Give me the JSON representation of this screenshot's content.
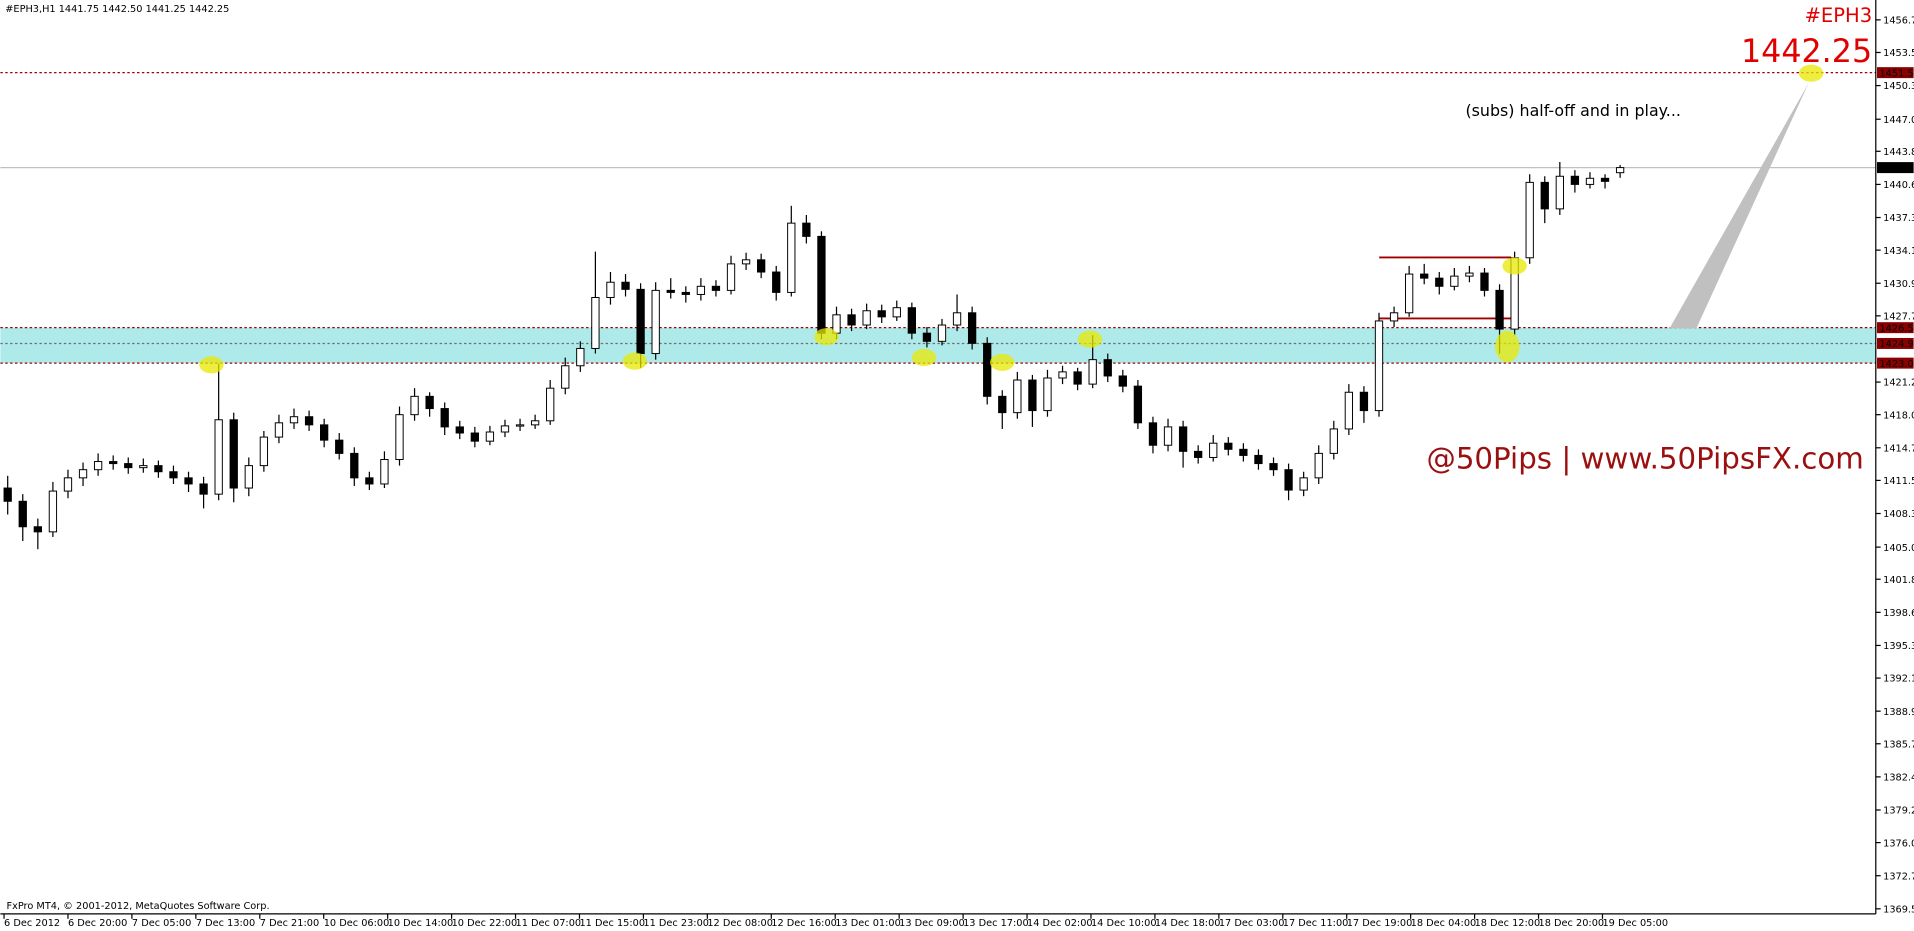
{
  "chart_data": {
    "type": "candlestick",
    "header": "#EPH3,H1  1441.75 1442.50 1441.25 1442.25",
    "symbol_label": "#EPH3",
    "price_label": "1442.25",
    "note": "(subs) half-off and in play...",
    "brand": "@50Pips | www.50PipsFX.com",
    "footer": "FxPro MT4, © 2001-2012, MetaQuotes Software Corp.",
    "bull_color": "#ffffff",
    "bear_color": "#000000",
    "ylim": [
      1369.0,
      1458.7
    ],
    "yticks": [
      1456.75,
      1453.55,
      {
        "value": 1450.3,
        "label": "1450.30"
      },
      {
        "value": 1447,
        "label": "1447.00"
      },
      1443.85,
      {
        "value": 1440.6,
        "label": "1440.60"
      },
      1437.35,
      1434.15,
      {
        "value": 1430.9,
        "label": "1430.90"
      },
      {
        "value": 1427.7,
        "label": "1427.70"
      },
      {
        "value": 1421.2,
        "label": "1421.20"
      },
      {
        "value": 1418,
        "label": "1418.00"
      },
      1414.75,
      1411.55,
      {
        "value": 1408.3,
        "label": "1408.30"
      },
      {
        "value": 1405,
        "label": "1405.00"
      },
      1401.85,
      {
        "value": 1398.6,
        "label": "1398.60"
      },
      1395.35,
      1392.15,
      {
        "value": 1388.9,
        "label": "1388.90"
      },
      {
        "value": 1385.7,
        "label": "1385.70"
      },
      1382.45,
      {
        "value": 1379.2,
        "label": "1379.20"
      },
      {
        "value": 1376,
        "label": "1376.00"
      },
      1372.75,
      {
        "value": 1369.5,
        "label": "1369.50"
      }
    ],
    "x_labels": [
      "6 Dec 2012",
      "6 Dec 20:00",
      "7 Dec 05:00",
      "7 Dec 13:00",
      "7 Dec 21:00",
      "10 Dec 06:00",
      "10 Dec 14:00",
      "10 Dec 22:00",
      "11 Dec 07:00",
      "11 Dec 15:00",
      "11 Dec 23:00",
      "12 Dec 08:00",
      "12 Dec 16:00",
      "13 Dec 01:00",
      "13 Dec 09:00",
      "13 Dec 17:00",
      "14 Dec 02:00",
      "14 Dec 10:00",
      "14 Dec 18:00",
      "17 Dec 03:00",
      "17 Dec 11:00",
      "17 Dec 19:00",
      "18 Dec 04:00",
      "18 Dec 12:00",
      "18 Dec 20:00",
      "19 Dec 05:00"
    ],
    "levels": [
      {
        "value": 1451.57,
        "color": "#a00000",
        "label_bg": "#8b0000",
        "dash": true,
        "zone": false
      },
      {
        "value": 1442.25,
        "color": "#c0c0c0",
        "label_bg": "#000000",
        "dash": false,
        "zone": false
      },
      {
        "value": 1426.54,
        "color": "#a00000",
        "label_bg": "#8b0000",
        "dash": true,
        "zone": true
      },
      {
        "value": 1424.99,
        "color": "#707070",
        "label_bg": "#8b0000",
        "dash": true,
        "zone": true
      },
      {
        "value": 1423.06,
        "color": "#a00000",
        "label_bg": "#8b0000",
        "dash": true,
        "zone": true
      }
    ],
    "zone_color": "#aeeaea",
    "candles": [
      [
        1410.8,
        1412.0,
        1408.2,
        1409.5
      ],
      [
        1409.5,
        1410.2,
        1405.6,
        1407.0
      ],
      [
        1407.0,
        1407.8,
        1404.8,
        1406.5
      ],
      [
        1406.5,
        1411.4,
        1406.0,
        1410.5
      ],
      [
        1410.5,
        1412.6,
        1409.8,
        1411.8
      ],
      [
        1411.8,
        1413.3,
        1411.0,
        1412.6
      ],
      [
        1412.6,
        1414.2,
        1412.0,
        1413.4
      ],
      [
        1413.4,
        1414.0,
        1412.6,
        1413.2
      ],
      [
        1413.2,
        1413.8,
        1412.2,
        1412.8
      ],
      [
        1412.8,
        1413.7,
        1412.3,
        1413.0
      ],
      [
        1413.0,
        1413.5,
        1411.8,
        1412.4
      ],
      [
        1412.4,
        1413.0,
        1411.2,
        1411.8
      ],
      [
        1411.8,
        1412.4,
        1410.4,
        1411.2
      ],
      [
        1411.2,
        1411.9,
        1408.8,
        1410.2
      ],
      [
        1410.2,
        1423.0,
        1409.6,
        1417.5
      ],
      [
        1417.5,
        1418.2,
        1409.4,
        1410.8
      ],
      [
        1410.8,
        1413.8,
        1410.0,
        1413.0
      ],
      [
        1413.0,
        1416.4,
        1412.4,
        1415.8
      ],
      [
        1415.8,
        1418.0,
        1415.2,
        1417.2
      ],
      [
        1417.2,
        1418.6,
        1416.6,
        1417.8
      ],
      [
        1417.8,
        1418.4,
        1416.4,
        1417.0
      ],
      [
        1417.0,
        1417.6,
        1414.8,
        1415.5
      ],
      [
        1415.5,
        1416.2,
        1413.6,
        1414.2
      ],
      [
        1414.2,
        1414.8,
        1411.0,
        1411.8
      ],
      [
        1411.8,
        1412.4,
        1410.6,
        1411.2
      ],
      [
        1411.2,
        1414.4,
        1410.8,
        1413.6
      ],
      [
        1413.6,
        1418.8,
        1413.0,
        1418.0
      ],
      [
        1418.0,
        1420.6,
        1417.4,
        1419.8
      ],
      [
        1419.8,
        1420.2,
        1417.8,
        1418.6
      ],
      [
        1418.6,
        1419.2,
        1416.0,
        1416.8
      ],
      [
        1416.8,
        1417.4,
        1415.6,
        1416.2
      ],
      [
        1416.2,
        1416.8,
        1414.8,
        1415.4
      ],
      [
        1415.4,
        1416.9,
        1415.0,
        1416.3
      ],
      [
        1416.3,
        1417.5,
        1415.8,
        1416.9
      ],
      [
        1416.9,
        1417.6,
        1416.4,
        1417.0
      ],
      [
        1417.0,
        1418.0,
        1416.6,
        1417.4
      ],
      [
        1417.4,
        1421.4,
        1417.0,
        1420.6
      ],
      [
        1420.6,
        1423.6,
        1420.0,
        1422.8
      ],
      [
        1422.8,
        1425.2,
        1422.2,
        1424.5
      ],
      [
        1424.5,
        1434.0,
        1424.0,
        1429.5
      ],
      [
        1429.5,
        1432.0,
        1428.8,
        1431.0
      ],
      [
        1431.0,
        1431.8,
        1429.6,
        1430.3
      ],
      [
        1430.3,
        1430.9,
        1422.6,
        1424.0
      ],
      [
        1424.0,
        1431.0,
        1423.4,
        1430.2
      ],
      [
        1430.2,
        1431.4,
        1429.4,
        1430.0
      ],
      [
        1430.0,
        1430.6,
        1429.0,
        1429.8
      ],
      [
        1429.8,
        1431.4,
        1429.2,
        1430.6
      ],
      [
        1430.6,
        1431.2,
        1429.6,
        1430.2
      ],
      [
        1430.2,
        1433.6,
        1429.8,
        1432.8
      ],
      [
        1432.8,
        1433.9,
        1432.2,
        1433.2
      ],
      [
        1433.2,
        1433.8,
        1431.4,
        1432.0
      ],
      [
        1432.0,
        1432.6,
        1429.2,
        1430.0
      ],
      [
        1430.0,
        1438.5,
        1429.6,
        1436.8
      ],
      [
        1436.8,
        1437.6,
        1434.8,
        1435.5
      ],
      [
        1435.5,
        1436.0,
        1425.4,
        1426.0
      ],
      [
        1426.0,
        1428.6,
        1425.4,
        1427.8
      ],
      [
        1427.8,
        1428.4,
        1426.2,
        1426.8
      ],
      [
        1426.8,
        1428.9,
        1426.4,
        1428.2
      ],
      [
        1428.2,
        1428.8,
        1427.0,
        1427.6
      ],
      [
        1427.6,
        1429.2,
        1427.2,
        1428.5
      ],
      [
        1428.5,
        1429.0,
        1425.4,
        1426.0
      ],
      [
        1426.0,
        1426.6,
        1424.6,
        1425.2
      ],
      [
        1425.2,
        1427.4,
        1424.8,
        1426.8
      ],
      [
        1426.8,
        1429.8,
        1426.2,
        1428.0
      ],
      [
        1428.0,
        1428.6,
        1424.4,
        1425.0
      ],
      [
        1425.0,
        1425.6,
        1419.0,
        1419.8
      ],
      [
        1419.8,
        1420.4,
        1416.6,
        1418.2
      ],
      [
        1418.2,
        1422.2,
        1417.6,
        1421.4
      ],
      [
        1421.4,
        1421.9,
        1416.8,
        1418.4
      ],
      [
        1418.4,
        1422.4,
        1417.8,
        1421.6
      ],
      [
        1421.6,
        1422.8,
        1421.0,
        1422.2
      ],
      [
        1422.2,
        1422.6,
        1420.4,
        1421.0
      ],
      [
        1421.0,
        1425.8,
        1420.6,
        1423.4
      ],
      [
        1423.4,
        1424.0,
        1421.2,
        1421.8
      ],
      [
        1421.8,
        1422.4,
        1420.2,
        1420.8
      ],
      [
        1420.8,
        1421.4,
        1416.6,
        1417.2
      ],
      [
        1417.2,
        1417.8,
        1414.2,
        1415.0
      ],
      [
        1415.0,
        1417.6,
        1414.4,
        1416.8
      ],
      [
        1416.8,
        1417.4,
        1412.8,
        1414.4
      ],
      [
        1414.4,
        1415.0,
        1413.2,
        1413.8
      ],
      [
        1413.8,
        1416.0,
        1413.4,
        1415.2
      ],
      [
        1415.2,
        1415.8,
        1414.0,
        1414.6
      ],
      [
        1414.6,
        1415.2,
        1413.4,
        1414.0
      ],
      [
        1414.0,
        1414.6,
        1412.6,
        1413.2
      ],
      [
        1413.2,
        1413.8,
        1412.0,
        1412.6
      ],
      [
        1412.6,
        1413.2,
        1409.6,
        1410.6
      ],
      [
        1410.6,
        1412.4,
        1410.0,
        1411.8
      ],
      [
        1411.8,
        1415.0,
        1411.2,
        1414.2
      ],
      [
        1414.2,
        1417.4,
        1413.6,
        1416.6
      ],
      [
        1416.6,
        1421.0,
        1416.0,
        1420.2
      ],
      [
        1420.2,
        1420.8,
        1417.2,
        1418.4
      ],
      [
        1418.4,
        1428.0,
        1417.8,
        1427.2
      ],
      [
        1427.2,
        1428.6,
        1426.6,
        1428.0
      ],
      [
        1428.0,
        1432.6,
        1427.6,
        1431.8
      ],
      [
        1431.8,
        1432.8,
        1430.8,
        1431.4
      ],
      [
        1431.4,
        1432.0,
        1429.8,
        1430.6
      ],
      [
        1430.6,
        1432.4,
        1430.2,
        1431.6
      ],
      [
        1431.6,
        1432.6,
        1431.0,
        1431.9
      ],
      [
        1431.9,
        1432.4,
        1429.6,
        1430.2
      ],
      [
        1430.2,
        1430.8,
        1424.0,
        1426.4
      ],
      [
        1426.4,
        1434.0,
        1425.8,
        1433.4
      ],
      [
        1433.4,
        1441.6,
        1432.8,
        1440.8
      ],
      [
        1440.8,
        1441.4,
        1436.8,
        1438.2
      ],
      [
        1438.2,
        1442.8,
        1437.6,
        1441.4
      ],
      [
        1441.4,
        1442.0,
        1439.8,
        1440.6
      ],
      [
        1440.6,
        1441.8,
        1440.2,
        1441.2
      ],
      [
        1441.2,
        1441.6,
        1440.2,
        1440.9
      ],
      [
        1441.75,
        1442.5,
        1441.25,
        1442.25
      ]
    ]
  }
}
